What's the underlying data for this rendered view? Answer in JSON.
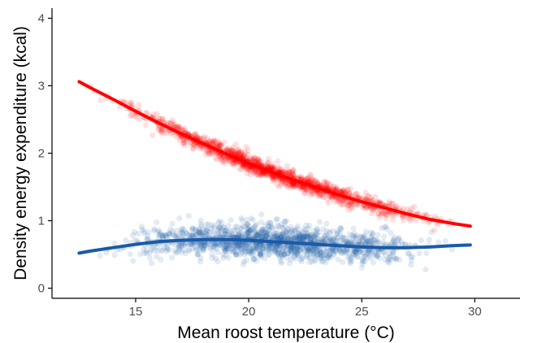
{
  "chart_data": {
    "type": "scatter",
    "title": "",
    "xlabel": "Mean roost temperature (°C)",
    "ylabel": "Density energy expenditure (kcal)",
    "xlim": [
      11.3,
      32.0
    ],
    "ylim": [
      -0.15,
      4.15
    ],
    "x_ticks": [
      15,
      20,
      25,
      30
    ],
    "x_tick_labels": [
      "15",
      "20",
      "25",
      "30"
    ],
    "y_ticks": [
      0,
      1,
      2,
      3,
      4
    ],
    "y_tick_labels": [
      "0",
      "1",
      "2",
      "3",
      "4"
    ],
    "grid": false,
    "legend": "none",
    "x_range_of_points": [
      12.3,
      29.9
    ],
    "series": [
      {
        "color": "#ff0000",
        "point_alpha": 0.12,
        "approx_point_count": 1500,
        "point_spread_y": 0.06,
        "trend": {
          "x": [
            12.5,
            13,
            14,
            15,
            16,
            17,
            18,
            19,
            20,
            21,
            22,
            23,
            24,
            25,
            26,
            27,
            28,
            29,
            29.8
          ],
          "y": [
            3.06,
            2.97,
            2.8,
            2.62,
            2.45,
            2.29,
            2.14,
            1.99,
            1.85,
            1.72,
            1.6,
            1.49,
            1.38,
            1.28,
            1.19,
            1.1,
            1.02,
            0.96,
            0.92
          ]
        }
      },
      {
        "color": "#1a5aa8",
        "point_alpha": 0.12,
        "approx_point_count": 1500,
        "point_spread_y": 0.12,
        "trend": {
          "x": [
            12.5,
            13,
            14,
            15,
            16,
            17,
            18,
            19,
            20,
            21,
            22,
            23,
            24,
            25,
            26,
            27,
            28,
            29,
            29.8
          ],
          "y": [
            0.52,
            0.55,
            0.6,
            0.65,
            0.69,
            0.71,
            0.72,
            0.72,
            0.71,
            0.69,
            0.67,
            0.65,
            0.63,
            0.61,
            0.6,
            0.6,
            0.61,
            0.63,
            0.64
          ]
        }
      }
    ]
  }
}
